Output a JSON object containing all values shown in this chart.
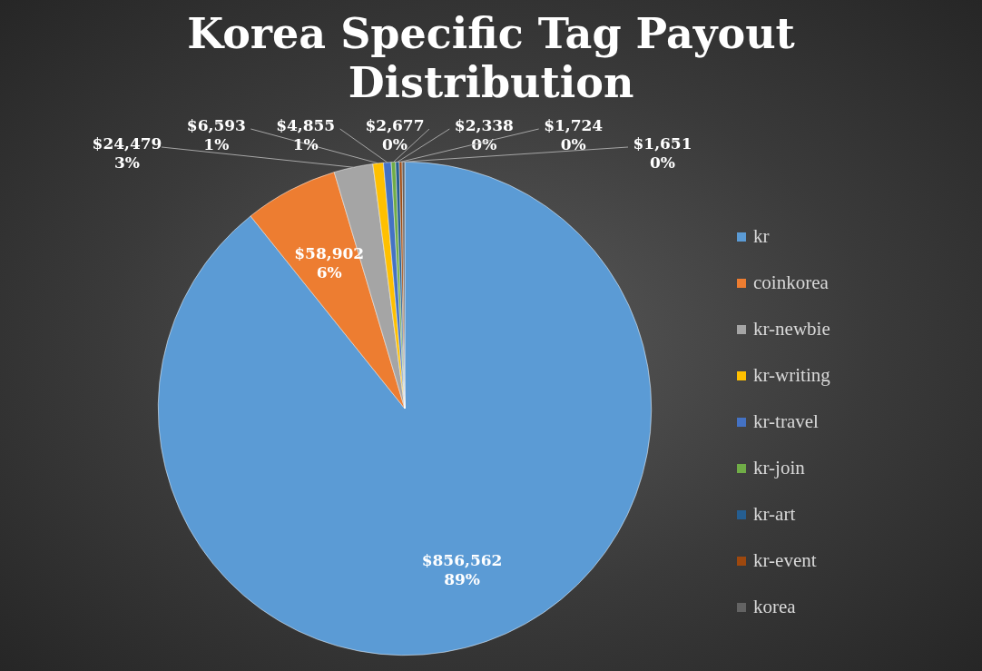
{
  "chart_data": {
    "type": "pie",
    "title": "Korea Specific Tag Payout Distribution",
    "categories": [
      "kr",
      "coinkorea",
      "kr-newbie",
      "kr-writing",
      "kr-travel",
      "kr-join",
      "kr-art",
      "kr-event",
      "korea"
    ],
    "values": [
      856562,
      58902,
      24479,
      6593,
      4855,
      2677,
      2338,
      1724,
      1651
    ],
    "colors": [
      "#5b9bd5",
      "#ed7d31",
      "#a5a5a5",
      "#ffc000",
      "#4472c4",
      "#70ad47",
      "#255e91",
      "#9e480e",
      "#636363"
    ],
    "value_labels": [
      "$856,562\n89%",
      "$58,902\n6%",
      "$24,479\n3%",
      "$6,593\n1%",
      "$4,855\n1%",
      "$2,677\n0%",
      "$2,338\n0%",
      "$1,724\n0%",
      "$1,651\n0%"
    ],
    "legend": "right"
  }
}
